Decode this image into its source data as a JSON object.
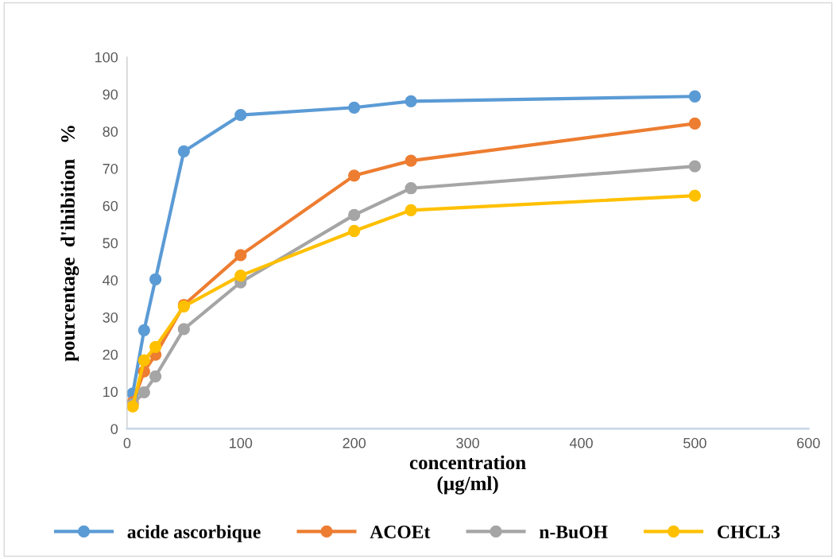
{
  "chart_data": {
    "type": "line",
    "xlabel": "concentration\n(µg/ml)",
    "ylabel": "pourcentage  d'ihibition   %",
    "x": [
      5,
      15,
      25,
      50,
      100,
      200,
      250,
      500
    ],
    "series": [
      {
        "name": "acide ascorbique",
        "color": "#5b9bd5",
        "values": [
          9.5,
          26.5,
          40.2,
          74.6,
          84.4,
          86.4,
          88.1,
          89.4
        ]
      },
      {
        "name": "ACOEt",
        "color": "#ed7d31",
        "values": [
          7.1,
          15.4,
          19.9,
          33.3,
          46.7,
          68.1,
          72.1,
          82.1
        ]
      },
      {
        "name": "n-BuOH",
        "color": "#a5a5a5",
        "values": [
          6.6,
          9.8,
          14.1,
          26.8,
          39.4,
          57.5,
          64.7,
          70.6
        ]
      },
      {
        "name": "CHCL3",
        "color": "#ffc000",
        "values": [
          6.0,
          18.4,
          22.0,
          32.9,
          41.2,
          53.2,
          58.8,
          62.7
        ]
      }
    ],
    "xlim": [
      0,
      600
    ],
    "xticks": [
      0,
      100,
      200,
      300,
      400,
      500,
      600
    ],
    "ylim": [
      0,
      100
    ],
    "yticks": [
      0,
      10,
      20,
      30,
      40,
      50,
      60,
      70,
      80,
      90,
      100
    ],
    "grid": false,
    "legend": "bottom",
    "marker": "circle",
    "line_style": "solid"
  }
}
